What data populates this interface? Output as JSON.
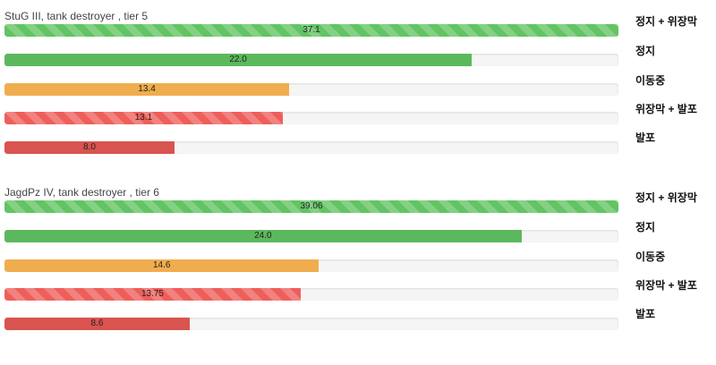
{
  "chart_data": [
    {
      "type": "bar",
      "title": "StuG III, tank destroyer , tier 5",
      "categories": [
        "정지 + 위장막",
        "정지",
        "이동중",
        "위장막 + 발포",
        "발포"
      ],
      "value_labels": [
        "37.1",
        "22.0",
        "13.4",
        "13.1",
        "8.0"
      ],
      "values": [
        37.1,
        22.0,
        13.4,
        13.1,
        8.0
      ],
      "xlim": [
        0,
        28.9
      ],
      "colors": [
        "#62c462",
        "#5cb85c",
        "#f0ad4e",
        "#ee5f5b",
        "#d9534f"
      ],
      "striped": [
        true,
        false,
        false,
        true,
        false
      ]
    },
    {
      "type": "bar",
      "title": "JagdPz IV, tank destroyer , tier 6",
      "categories": [
        "정지 + 위장막",
        "정지",
        "이동중",
        "위장막 + 발포",
        "발포"
      ],
      "value_labels": [
        "39.06",
        "24.0",
        "14.6",
        "13.75",
        "8.6"
      ],
      "values": [
        39.06,
        24.0,
        14.6,
        13.75,
        8.6
      ],
      "xlim": [
        0,
        28.5
      ],
      "colors": [
        "#62c462",
        "#5cb85c",
        "#f0ad4e",
        "#ee5f5b",
        "#d9534f"
      ],
      "striped": [
        true,
        false,
        false,
        true,
        false
      ]
    }
  ]
}
